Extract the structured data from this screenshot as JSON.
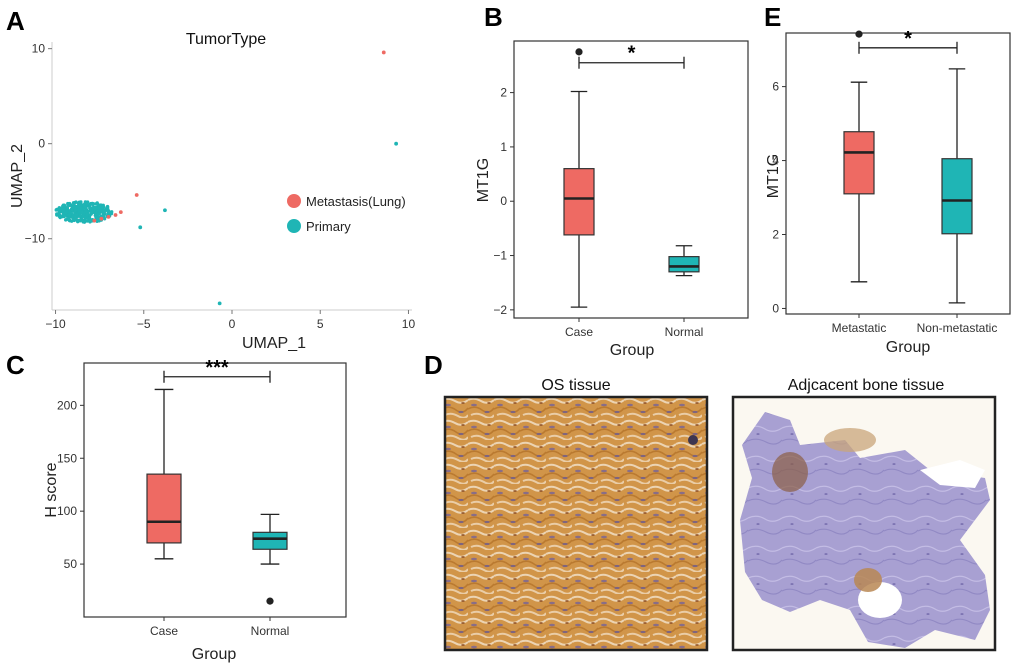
{
  "colors": {
    "case": "#EE6A63",
    "normal": "#1FB5B5",
    "outlier": "#222222"
  },
  "chart_data": [
    {
      "id": "A",
      "type": "scatter",
      "panel_label": "A",
      "title": "TumorType",
      "xlabel": "UMAP_1",
      "ylabel": "UMAP_2",
      "xlim": [
        -10.2,
        10.2
      ],
      "ylim": [
        -17.5,
        10.7
      ],
      "xticks": [
        -10,
        -5,
        0,
        5,
        10
      ],
      "yticks": [
        10,
        0,
        -10
      ],
      "legend": {
        "placement": "right",
        "entries": [
          "Metastasis(Lung)",
          "Primary"
        ]
      },
      "series": [
        {
          "name": "Metastasis(Lung)",
          "color": "#EE6A63",
          "points": [
            [
              8.6,
              9.6
            ],
            [
              -5.4,
              -5.4
            ],
            [
              -7.4,
              -7.9
            ],
            [
              -7.0,
              -7.7
            ],
            [
              -6.6,
              -7.5
            ],
            [
              -7.8,
              -8.1
            ],
            [
              -6.3,
              -7.2
            ]
          ]
        },
        {
          "name": "Primary",
          "color": "#1FB5B5",
          "points": [
            [
              9.3,
              0.0
            ],
            [
              -3.8,
              -7.0
            ],
            [
              -5.2,
              -8.8
            ],
            [
              -0.7,
              -16.8
            ]
          ]
        }
      ],
      "cluster": {
        "name": "Primary",
        "color": "#1FB5B5",
        "center": [
          -8.4,
          -7.2
        ],
        "x_radius": 1.6,
        "y_radius": 1.1
      }
    },
    {
      "id": "B",
      "type": "boxplot",
      "panel_label": "B",
      "xlabel": "Group",
      "ylabel": "MT1G",
      "ylim": [
        -2.15,
        2.95
      ],
      "yticks": [
        -2,
        -1,
        0,
        1,
        2
      ],
      "categories": [
        "Case",
        "Normal"
      ],
      "boxes": [
        {
          "min": -1.95,
          "q1": -0.62,
          "median": 0.05,
          "q3": 0.6,
          "max": 2.02,
          "outliers": [
            2.75
          ]
        },
        {
          "min": -1.37,
          "q1": -1.3,
          "median": -1.2,
          "q3": -1.02,
          "max": -0.82,
          "outliers": []
        }
      ],
      "significance": "*"
    },
    {
      "id": "E",
      "type": "boxplot",
      "panel_label": "E",
      "xlabel": "Group",
      "ylabel": "MT1G",
      "ylim": [
        -0.15,
        7.45
      ],
      "yticks": [
        0,
        2,
        4,
        6
      ],
      "categories": [
        "Metastatic",
        "Non-metastatic"
      ],
      "boxes": [
        {
          "min": 0.72,
          "q1": 3.1,
          "median": 4.22,
          "q3": 4.78,
          "max": 6.12,
          "outliers": [
            7.42
          ]
        },
        {
          "min": 0.15,
          "q1": 2.02,
          "median": 2.92,
          "q3": 4.05,
          "max": 6.48,
          "outliers": []
        }
      ],
      "significance": "*"
    },
    {
      "id": "C",
      "type": "boxplot",
      "panel_label": "C",
      "xlabel": "Group",
      "ylabel": "H score",
      "ylim": [
        0,
        240
      ],
      "yticks": [
        50,
        100,
        150,
        200
      ],
      "categories": [
        "Case",
        "Normal"
      ],
      "boxes": [
        {
          "min": 55,
          "q1": 70,
          "median": 90,
          "q3": 135,
          "max": 215,
          "outliers": []
        },
        {
          "min": 50,
          "q1": 64,
          "median": 74,
          "q3": 80,
          "max": 97,
          "outliers": [
            15
          ]
        }
      ],
      "significance": "***"
    }
  ],
  "panel_d": {
    "label": "D",
    "images": [
      {
        "title": "OS tissue"
      },
      {
        "title": "Adjcacent bone tissue"
      }
    ]
  }
}
